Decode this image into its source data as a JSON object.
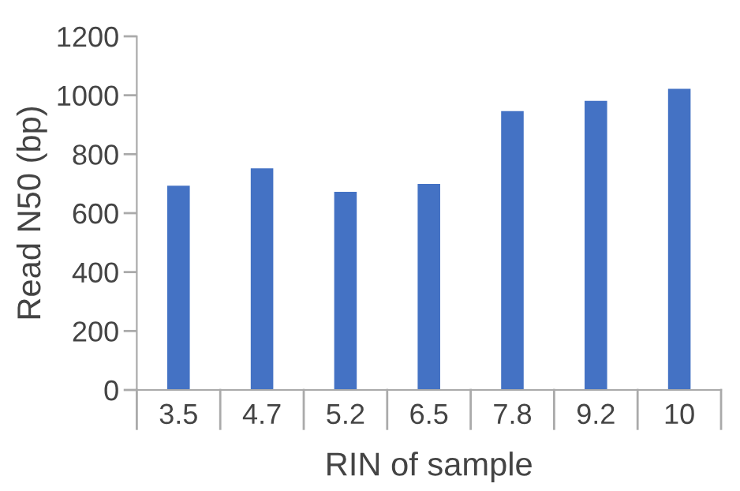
{
  "chart_data": {
    "type": "bar",
    "xlabel": "RIN of sample",
    "ylabel": "Read N50 (bp)",
    "categories": [
      "3.5",
      "4.7",
      "5.2",
      "6.5",
      "7.8",
      "9.2",
      "10"
    ],
    "values": [
      693,
      752,
      672,
      699,
      946,
      981,
      1022
    ],
    "color": "#4472c4",
    "ylim": [
      0,
      1200
    ],
    "yticks": [
      0,
      200,
      400,
      600,
      800,
      1000,
      1200
    ],
    "grid": false,
    "legend": false
  }
}
